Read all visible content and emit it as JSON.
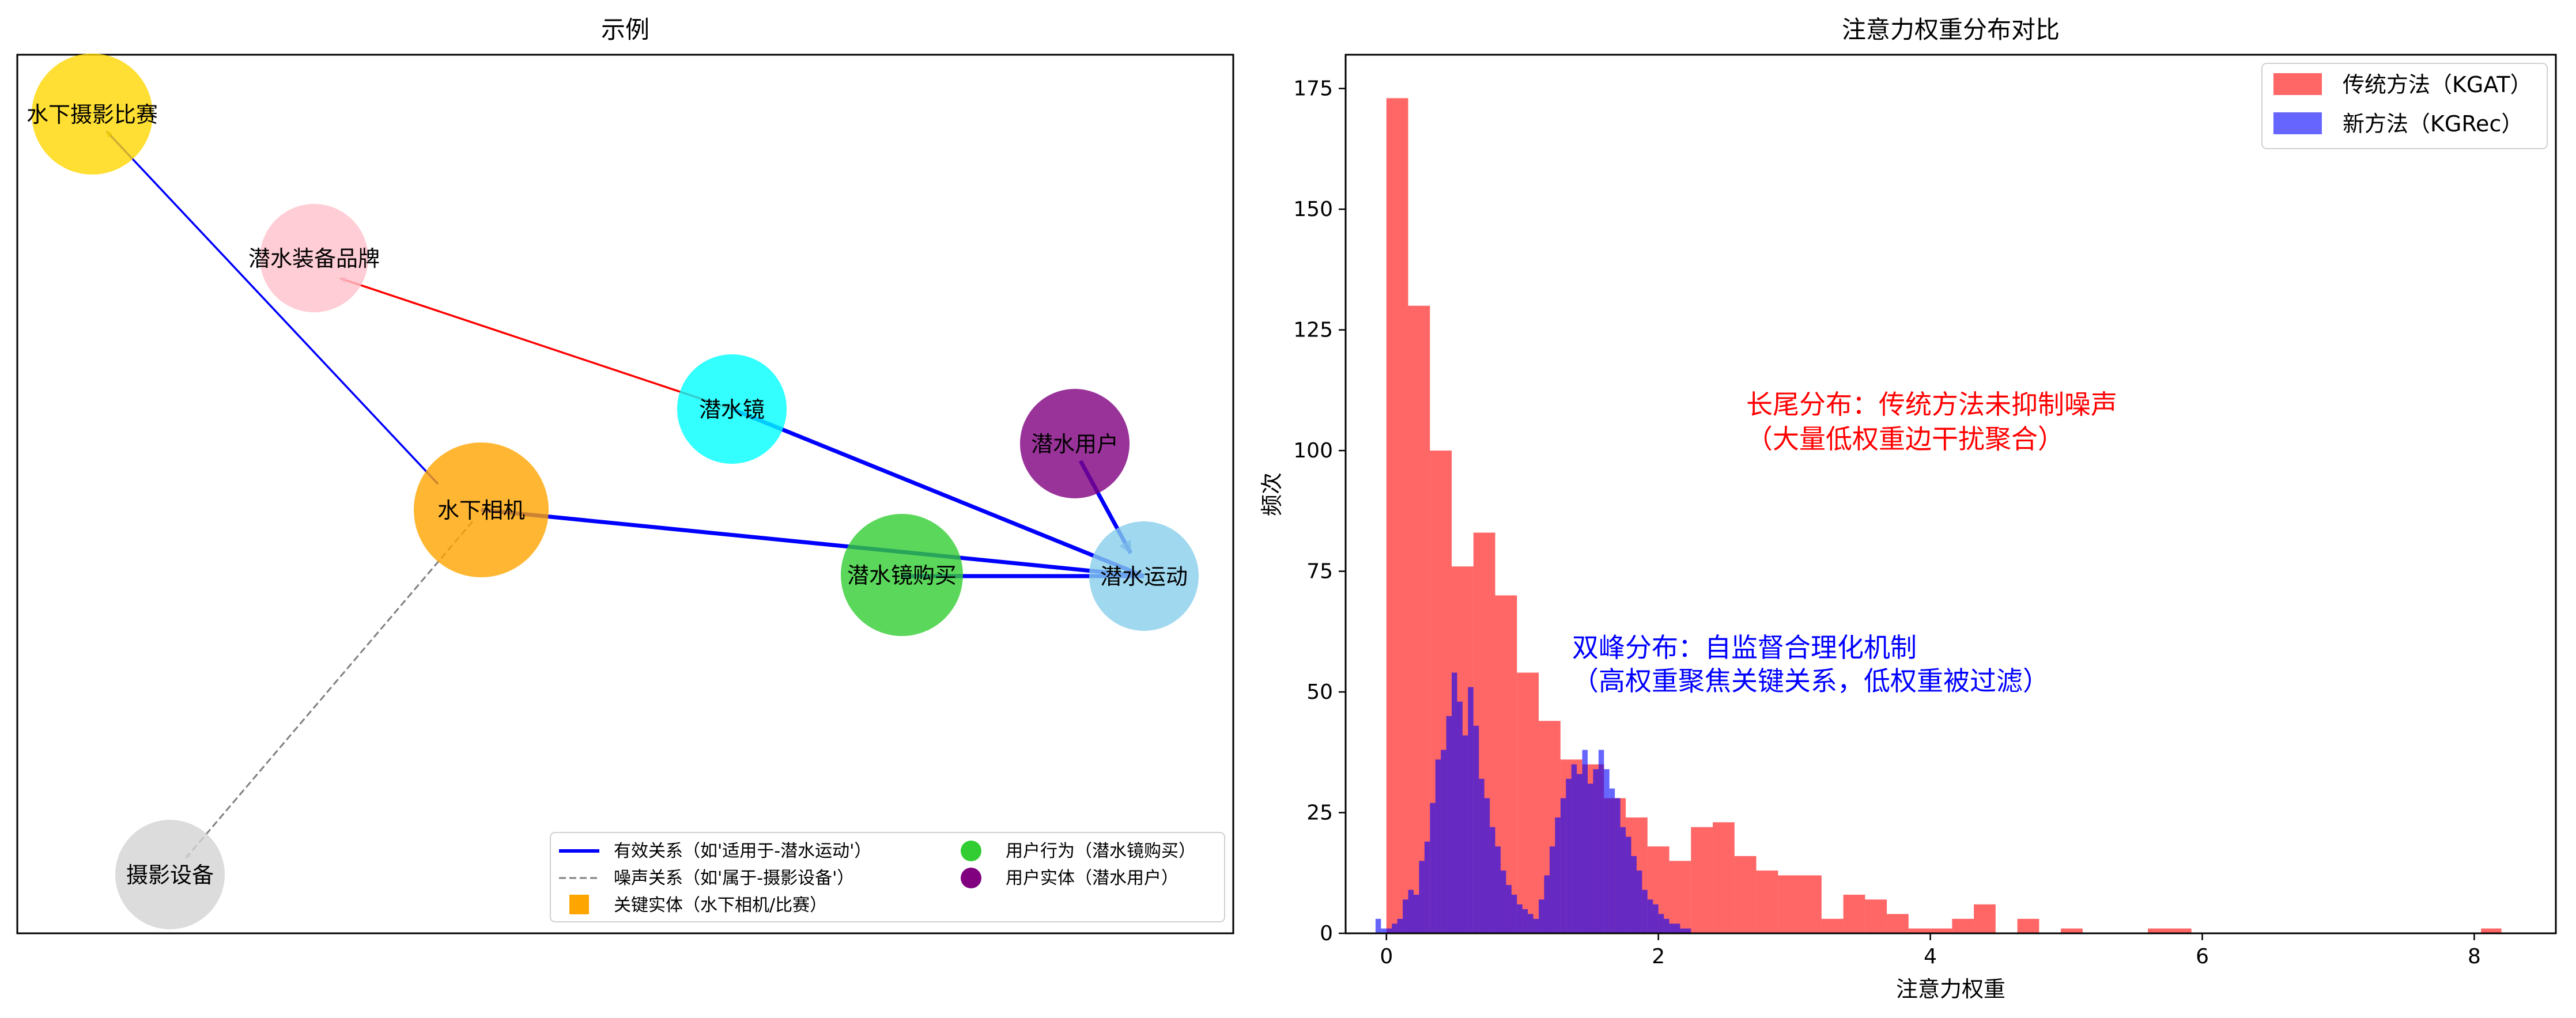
{
  "chart_data": [
    {
      "type": "network",
      "title": "示例",
      "nodes": [
        {
          "id": "n_contest",
          "label": "水下摄影比赛",
          "color": "#FFD700"
        },
        {
          "id": "n_brand",
          "label": "潜水装备品牌",
          "color": "#FFC0CB"
        },
        {
          "id": "n_mask",
          "label": "潜水镜",
          "color": "#00FFFF"
        },
        {
          "id": "n_user",
          "label": "潜水用户",
          "color": "#800080"
        },
        {
          "id": "n_camera",
          "label": "水下相机",
          "color": "#FFA500"
        },
        {
          "id": "n_buy",
          "label": "潜水镜购买",
          "color": "#32CD32"
        },
        {
          "id": "n_sport",
          "label": "潜水运动",
          "color": "#87CEEB"
        },
        {
          "id": "n_photo",
          "label": "摄影设备",
          "color": "#D3D3D3"
        }
      ],
      "edges": [
        {
          "from": "n_camera",
          "to": "n_contest",
          "color": "#0000FF",
          "style": "solid",
          "weight": "thin"
        },
        {
          "from": "n_mask",
          "to": "n_brand",
          "color": "#FF0000",
          "style": "solid",
          "weight": "thin"
        },
        {
          "from": "n_mask",
          "to": "n_sport",
          "color": "#0000FF",
          "style": "solid",
          "weight": "thick"
        },
        {
          "from": "n_camera",
          "to": "n_sport",
          "color": "#0000FF",
          "style": "solid",
          "weight": "thick"
        },
        {
          "from": "n_buy",
          "to": "n_sport",
          "color": "#0000FF",
          "style": "solid",
          "weight": "thick"
        },
        {
          "from": "n_user",
          "to": "n_sport",
          "color": "#0000FF",
          "style": "solid",
          "weight": "thick"
        },
        {
          "from": "n_camera",
          "to": "n_photo",
          "color": "#808080",
          "style": "dashed",
          "weight": "thin"
        }
      ],
      "legend": {
        "placement": "lower-right",
        "entries": [
          {
            "label": "有效关系（如'适用于-潜水运动'）",
            "marker": "line",
            "color": "#0000FF"
          },
          {
            "label": "用户行为（潜水镜购买）",
            "marker": "circle",
            "color": "#32CD32"
          },
          {
            "label": "噪声关系（如'属于-摄影设备'）",
            "marker": "dashed-line",
            "color": "#808080"
          },
          {
            "label": "用户实体（潜水用户）",
            "marker": "circle",
            "color": "#800080"
          },
          {
            "label": "关键实体（水下相机/比赛）",
            "marker": "square",
            "color": "#FFA500"
          }
        ]
      }
    },
    {
      "type": "histogram",
      "title": "注意力权重分布对比",
      "xlabel": "注意力权重",
      "ylabel": "频次",
      "xlim": [
        -0.3,
        8.6
      ],
      "ylim": [
        0,
        182
      ],
      "xticks": [
        0,
        2,
        4,
        6,
        8
      ],
      "yticks": [
        0,
        25,
        50,
        75,
        100,
        125,
        150,
        175
      ],
      "grid": false,
      "legend_placement": "top-right",
      "series": [
        {
          "name": "传统方法（KGAT）",
          "color": "#FF0000",
          "alpha": 0.6,
          "bins": [
            [
              0.0,
              0.16,
              173
            ],
            [
              0.16,
              0.32,
              130
            ],
            [
              0.32,
              0.48,
              100
            ],
            [
              0.48,
              0.64,
              76
            ],
            [
              0.64,
              0.8,
              83
            ],
            [
              0.8,
              0.96,
              70
            ],
            [
              0.96,
              1.12,
              54
            ],
            [
              1.12,
              1.28,
              44
            ],
            [
              1.28,
              1.44,
              36
            ],
            [
              1.44,
              1.6,
              35
            ],
            [
              1.6,
              1.76,
              28
            ],
            [
              1.76,
              1.92,
              24
            ],
            [
              1.92,
              2.08,
              18
            ],
            [
              2.08,
              2.24,
              15
            ],
            [
              2.24,
              2.4,
              22
            ],
            [
              2.4,
              2.56,
              23
            ],
            [
              2.56,
              2.72,
              16
            ],
            [
              2.72,
              2.88,
              13
            ],
            [
              2.88,
              3.04,
              12
            ],
            [
              3.04,
              3.2,
              12
            ],
            [
              3.2,
              3.36,
              3
            ],
            [
              3.36,
              3.52,
              8
            ],
            [
              3.52,
              3.68,
              7
            ],
            [
              3.68,
              3.84,
              4
            ],
            [
              3.84,
              4.0,
              1
            ],
            [
              4.0,
              4.16,
              1
            ],
            [
              4.16,
              4.32,
              3
            ],
            [
              4.32,
              4.48,
              6
            ],
            [
              4.48,
              4.64,
              0
            ],
            [
              4.64,
              4.8,
              3
            ],
            [
              4.8,
              4.96,
              0
            ],
            [
              4.96,
              5.12,
              1
            ],
            [
              5.12,
              5.28,
              0
            ],
            [
              5.28,
              5.44,
              0
            ],
            [
              5.44,
              5.6,
              0
            ],
            [
              5.6,
              5.76,
              1
            ],
            [
              5.76,
              5.92,
              1
            ],
            [
              8.05,
              8.2,
              1
            ]
          ]
        },
        {
          "name": "新方法（KGRec）",
          "color": "#0000FF",
          "alpha": 0.6,
          "bins": [
            [
              -0.08,
              -0.04,
              3
            ],
            [
              -0.04,
              0.0,
              1
            ],
            [
              0.0,
              0.04,
              1
            ],
            [
              0.04,
              0.08,
              2
            ],
            [
              0.08,
              0.12,
              3
            ],
            [
              0.12,
              0.16,
              7
            ],
            [
              0.16,
              0.2,
              9
            ],
            [
              0.2,
              0.24,
              8
            ],
            [
              0.24,
              0.28,
              15
            ],
            [
              0.28,
              0.32,
              19
            ],
            [
              0.32,
              0.36,
              27
            ],
            [
              0.36,
              0.4,
              36
            ],
            [
              0.4,
              0.44,
              38
            ],
            [
              0.44,
              0.48,
              45
            ],
            [
              0.48,
              0.52,
              54
            ],
            [
              0.52,
              0.56,
              48
            ],
            [
              0.56,
              0.6,
              41
            ],
            [
              0.6,
              0.64,
              51
            ],
            [
              0.64,
              0.68,
              43
            ],
            [
              0.68,
              0.72,
              32
            ],
            [
              0.72,
              0.76,
              28
            ],
            [
              0.76,
              0.8,
              22
            ],
            [
              0.8,
              0.84,
              18
            ],
            [
              0.84,
              0.88,
              13
            ],
            [
              0.88,
              0.92,
              10
            ],
            [
              0.92,
              0.96,
              8
            ],
            [
              0.96,
              1.0,
              6
            ],
            [
              1.0,
              1.04,
              5
            ],
            [
              1.04,
              1.08,
              4
            ],
            [
              1.08,
              1.12,
              3
            ],
            [
              1.12,
              1.16,
              7
            ],
            [
              1.16,
              1.2,
              12
            ],
            [
              1.2,
              1.24,
              18
            ],
            [
              1.24,
              1.28,
              24
            ],
            [
              1.28,
              1.32,
              28
            ],
            [
              1.32,
              1.36,
              32
            ],
            [
              1.36,
              1.4,
              35
            ],
            [
              1.4,
              1.44,
              33
            ],
            [
              1.44,
              1.48,
              38
            ],
            [
              1.48,
              1.52,
              31
            ],
            [
              1.52,
              1.56,
              34
            ],
            [
              1.56,
              1.6,
              38
            ],
            [
              1.6,
              1.64,
              34
            ],
            [
              1.64,
              1.68,
              30
            ],
            [
              1.68,
              1.72,
              28
            ],
            [
              1.72,
              1.76,
              22
            ],
            [
              1.76,
              1.8,
              20
            ],
            [
              1.8,
              1.84,
              16
            ],
            [
              1.84,
              1.88,
              13
            ],
            [
              1.88,
              1.92,
              9
            ],
            [
              1.92,
              1.96,
              7
            ],
            [
              1.96,
              2.0,
              6
            ],
            [
              2.0,
              2.04,
              4
            ],
            [
              2.04,
              2.08,
              3
            ],
            [
              2.08,
              2.12,
              2
            ],
            [
              2.12,
              2.16,
              2
            ],
            [
              2.16,
              2.2,
              1
            ],
            [
              2.2,
              2.24,
              1
            ]
          ]
        }
      ],
      "annotations": [
        {
          "lines": [
            "长尾分布：传统方法未抑制噪声",
            "（大量低权重边干扰聚合）"
          ],
          "color": "#FF0000",
          "x": 2.5,
          "y": 108
        },
        {
          "lines": [
            "双峰分布：自监督合理化机制",
            "（高权重聚焦关键关系，低权重被过滤）"
          ],
          "color": "#0000FF",
          "x": 1.2,
          "y": 57
        }
      ]
    }
  ]
}
